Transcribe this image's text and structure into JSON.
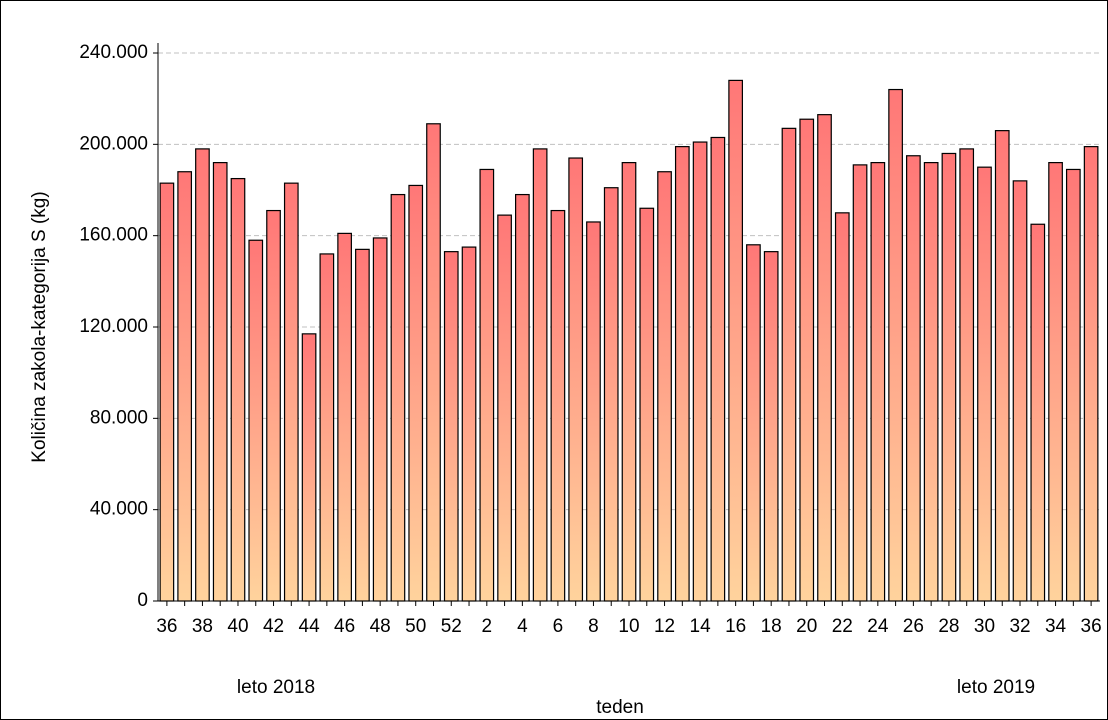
{
  "chart_data": {
    "type": "bar",
    "x_label": "teden",
    "y_label": "Količina zakola-kategorija S (kg)",
    "annotations": [
      "leto 2018",
      "leto 2019"
    ],
    "categories": [
      "36",
      null,
      "38",
      null,
      "40",
      null,
      "42",
      null,
      "44",
      null,
      "46",
      null,
      "48",
      null,
      "50",
      null,
      "52",
      null,
      "2",
      null,
      "4",
      null,
      "6",
      null,
      "8",
      null,
      "10",
      null,
      "12",
      null,
      "14",
      null,
      "16",
      null,
      "18",
      null,
      "20",
      null,
      "22",
      null,
      "24",
      null,
      "26",
      null,
      "28",
      null,
      "30",
      null,
      "32",
      null,
      "34",
      null,
      "36"
    ],
    "values": [
      183000,
      188000,
      198000,
      192000,
      185000,
      158000,
      171000,
      183000,
      117000,
      152000,
      161000,
      154000,
      159000,
      178000,
      182000,
      209000,
      153000,
      155000,
      189000,
      169000,
      178000,
      198000,
      171000,
      194000,
      166000,
      181000,
      192000,
      172000,
      188000,
      199000,
      201000,
      203000,
      228000,
      156000,
      153000,
      207000,
      211000,
      213000,
      170000,
      191000,
      192000,
      224000,
      195000,
      192000,
      196000,
      198000,
      190000,
      206000,
      184000,
      165000,
      192000,
      189000,
      199000
    ],
    "gradient": [
      "#ff7777",
      "#ffd39d"
    ],
    "ylim": [
      0,
      240000
    ],
    "yticks": [
      0,
      {
        "value": 40000,
        "label": "40.000"
      },
      {
        "value": 80000,
        "label": "80.000"
      },
      {
        "value": 120000,
        "label": "120.000"
      },
      {
        "value": 160000,
        "label": "160.000"
      },
      {
        "value": 200000,
        "label": "200.000"
      },
      {
        "value": 240000,
        "label": "240.000"
      }
    ],
    "grid": true
  }
}
